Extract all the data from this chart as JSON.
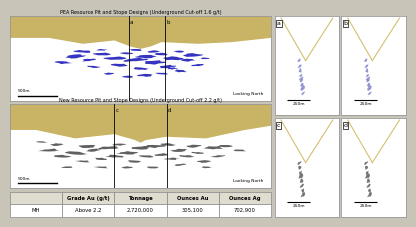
{
  "title_top": "PEA Resource Pit and Stope Designs (Underground Cut-off 1.6 g/t)",
  "title_bottom": "New Resource Pit and Stope Designs (Underground Cut-off 2.2 g/t)",
  "looking_north": "Looking North",
  "scale_500": "500m",
  "scale_250": "250m",
  "panel_labels": [
    "a",
    "b",
    "c",
    "d"
  ],
  "table_headers": [
    "",
    "Grade Au (g/t)",
    "Tonnage",
    "Ounces Au",
    "Ounces Ag"
  ],
  "table_row": [
    "MH",
    "Above 2.2",
    "2,720,000",
    "305,100",
    "702,900"
  ],
  "overall_bg": "#c8c4b8",
  "pit_fill_color": "#c8b464",
  "stope_color_blue": "#2222bb",
  "stope_color_dark": "#444444",
  "cross_section_line_color": "#d4c070",
  "cross_section_stope_blue": "#8888cc",
  "cross_section_stope_dark": "#666666",
  "panel_border": "#999999"
}
